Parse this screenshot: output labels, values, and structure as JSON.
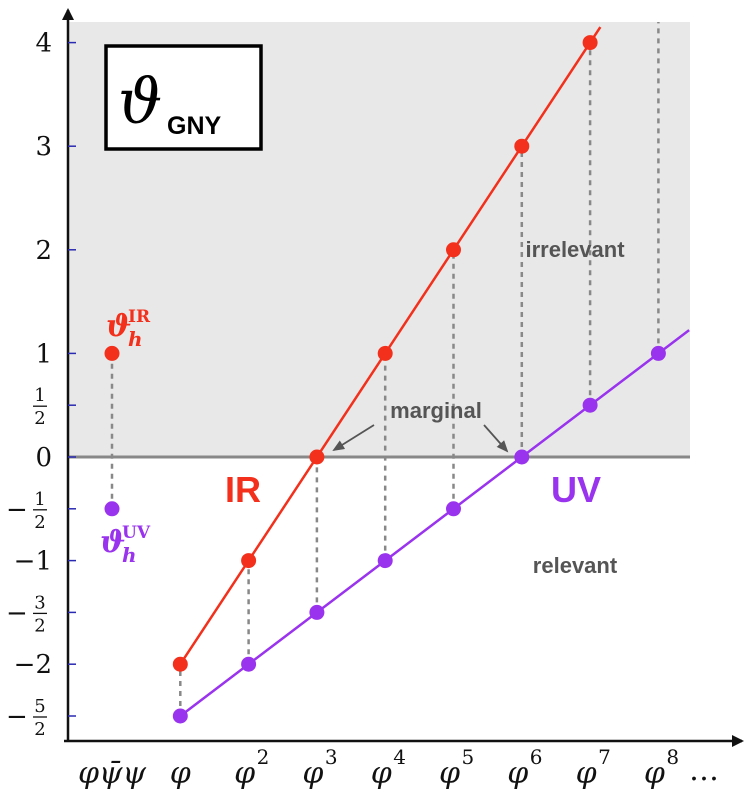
{
  "chart_data": {
    "type": "line",
    "title": {
      "symbol": "ϑ",
      "subscript": "GNY"
    },
    "x": [
      "φψ̄ψ",
      "φ",
      "φ2",
      "φ3",
      "φ4",
      "φ5",
      "φ6",
      "φ7",
      "φ8"
    ],
    "x_tick_labels": [
      {
        "base": "φψ̄ψ",
        "sup": ""
      },
      {
        "base": "φ",
        "sup": ""
      },
      {
        "base": "φ",
        "sup": "2"
      },
      {
        "base": "φ",
        "sup": "3"
      },
      {
        "base": "φ",
        "sup": "4"
      },
      {
        "base": "φ",
        "sup": "5"
      },
      {
        "base": "φ",
        "sup": "6"
      },
      {
        "base": "φ",
        "sup": "7"
      },
      {
        "base": "φ",
        "sup": "8"
      }
    ],
    "x_trailing": "…",
    "ylim": [
      -2.75,
      4.3
    ],
    "y_ticks": [
      {
        "value": 4,
        "label": "4"
      },
      {
        "value": 3,
        "label": "3"
      },
      {
        "value": 2,
        "label": "2"
      },
      {
        "value": 1,
        "label": "1"
      },
      {
        "value": 0.5,
        "frac": [
          "1",
          "2"
        ],
        "neg": false
      },
      {
        "value": 0,
        "label": "0"
      },
      {
        "value": -0.5,
        "frac": [
          "1",
          "2"
        ],
        "neg": true
      },
      {
        "value": -1,
        "label": "−1"
      },
      {
        "value": -1.5,
        "frac": [
          "3",
          "2"
        ],
        "neg": true
      },
      {
        "value": -2,
        "label": "−2"
      },
      {
        "value": -2.5,
        "frac": [
          "5",
          "2"
        ],
        "neg": true
      }
    ],
    "series": [
      {
        "name": "IR",
        "color": "#f2301b",
        "points": [
          {
            "x": 0,
            "y": 1
          },
          {
            "x": 1,
            "y": -2
          },
          {
            "x": 2,
            "y": -1
          },
          {
            "x": 3,
            "y": 0
          },
          {
            "x": 4,
            "y": 1
          },
          {
            "x": 5,
            "y": 2
          },
          {
            "x": 6,
            "y": 3
          },
          {
            "x": 7,
            "y": 4
          }
        ],
        "line": {
          "from_x": 1,
          "to_x": 7.15,
          "slope": 1,
          "intercept": -3
        }
      },
      {
        "name": "UV",
        "color": "#9933ee",
        "points": [
          {
            "x": 0,
            "y": -0.5
          },
          {
            "x": 1,
            "y": -2.5
          },
          {
            "x": 2,
            "y": -2
          },
          {
            "x": 3,
            "y": -1.5
          },
          {
            "x": 4,
            "y": -1
          },
          {
            "x": 5,
            "y": -0.5
          },
          {
            "x": 6,
            "y": 0
          },
          {
            "x": 7,
            "y": 0.5
          },
          {
            "x": 8,
            "y": 1
          }
        ],
        "line": {
          "from_x": 1,
          "to_x": 8.45,
          "slope": 0.5,
          "intercept": -3
        }
      }
    ],
    "connectors": [
      {
        "x": 0,
        "from": -0.5,
        "to": 1
      },
      {
        "x": 1,
        "from": -2.5,
        "to": -2
      },
      {
        "x": 2,
        "from": -2,
        "to": -1
      },
      {
        "x": 3,
        "from": -1.5,
        "to": 0
      },
      {
        "x": 4,
        "from": -1,
        "to": 1
      },
      {
        "x": 5,
        "from": -0.5,
        "to": 2
      },
      {
        "x": 6,
        "from": 0,
        "to": 3
      },
      {
        "x": 7,
        "from": 0.5,
        "to": 4
      },
      {
        "x": 8,
        "from": 1,
        "to": 4.3
      }
    ],
    "shaded_region": {
      "from_y": 0,
      "to_y": 4.3,
      "color": "#e8e8e8"
    },
    "zero_line_color": "#888888",
    "annotations": {
      "irrelevant": "irrelevant",
      "marginal": "marginal",
      "relevant": "relevant",
      "ir_label": "IR",
      "uv_label": "UV",
      "marginal_arrows_to": [
        {
          "x": 3,
          "y": 0
        },
        {
          "x": 6,
          "y": 0
        }
      ]
    },
    "legend": {
      "ir": {
        "symbol": "ϑ",
        "sub": "h",
        "sup": "IR"
      },
      "uv": {
        "symbol": "ϑ",
        "sub": "h",
        "sup": "UV"
      }
    },
    "grid": false
  }
}
